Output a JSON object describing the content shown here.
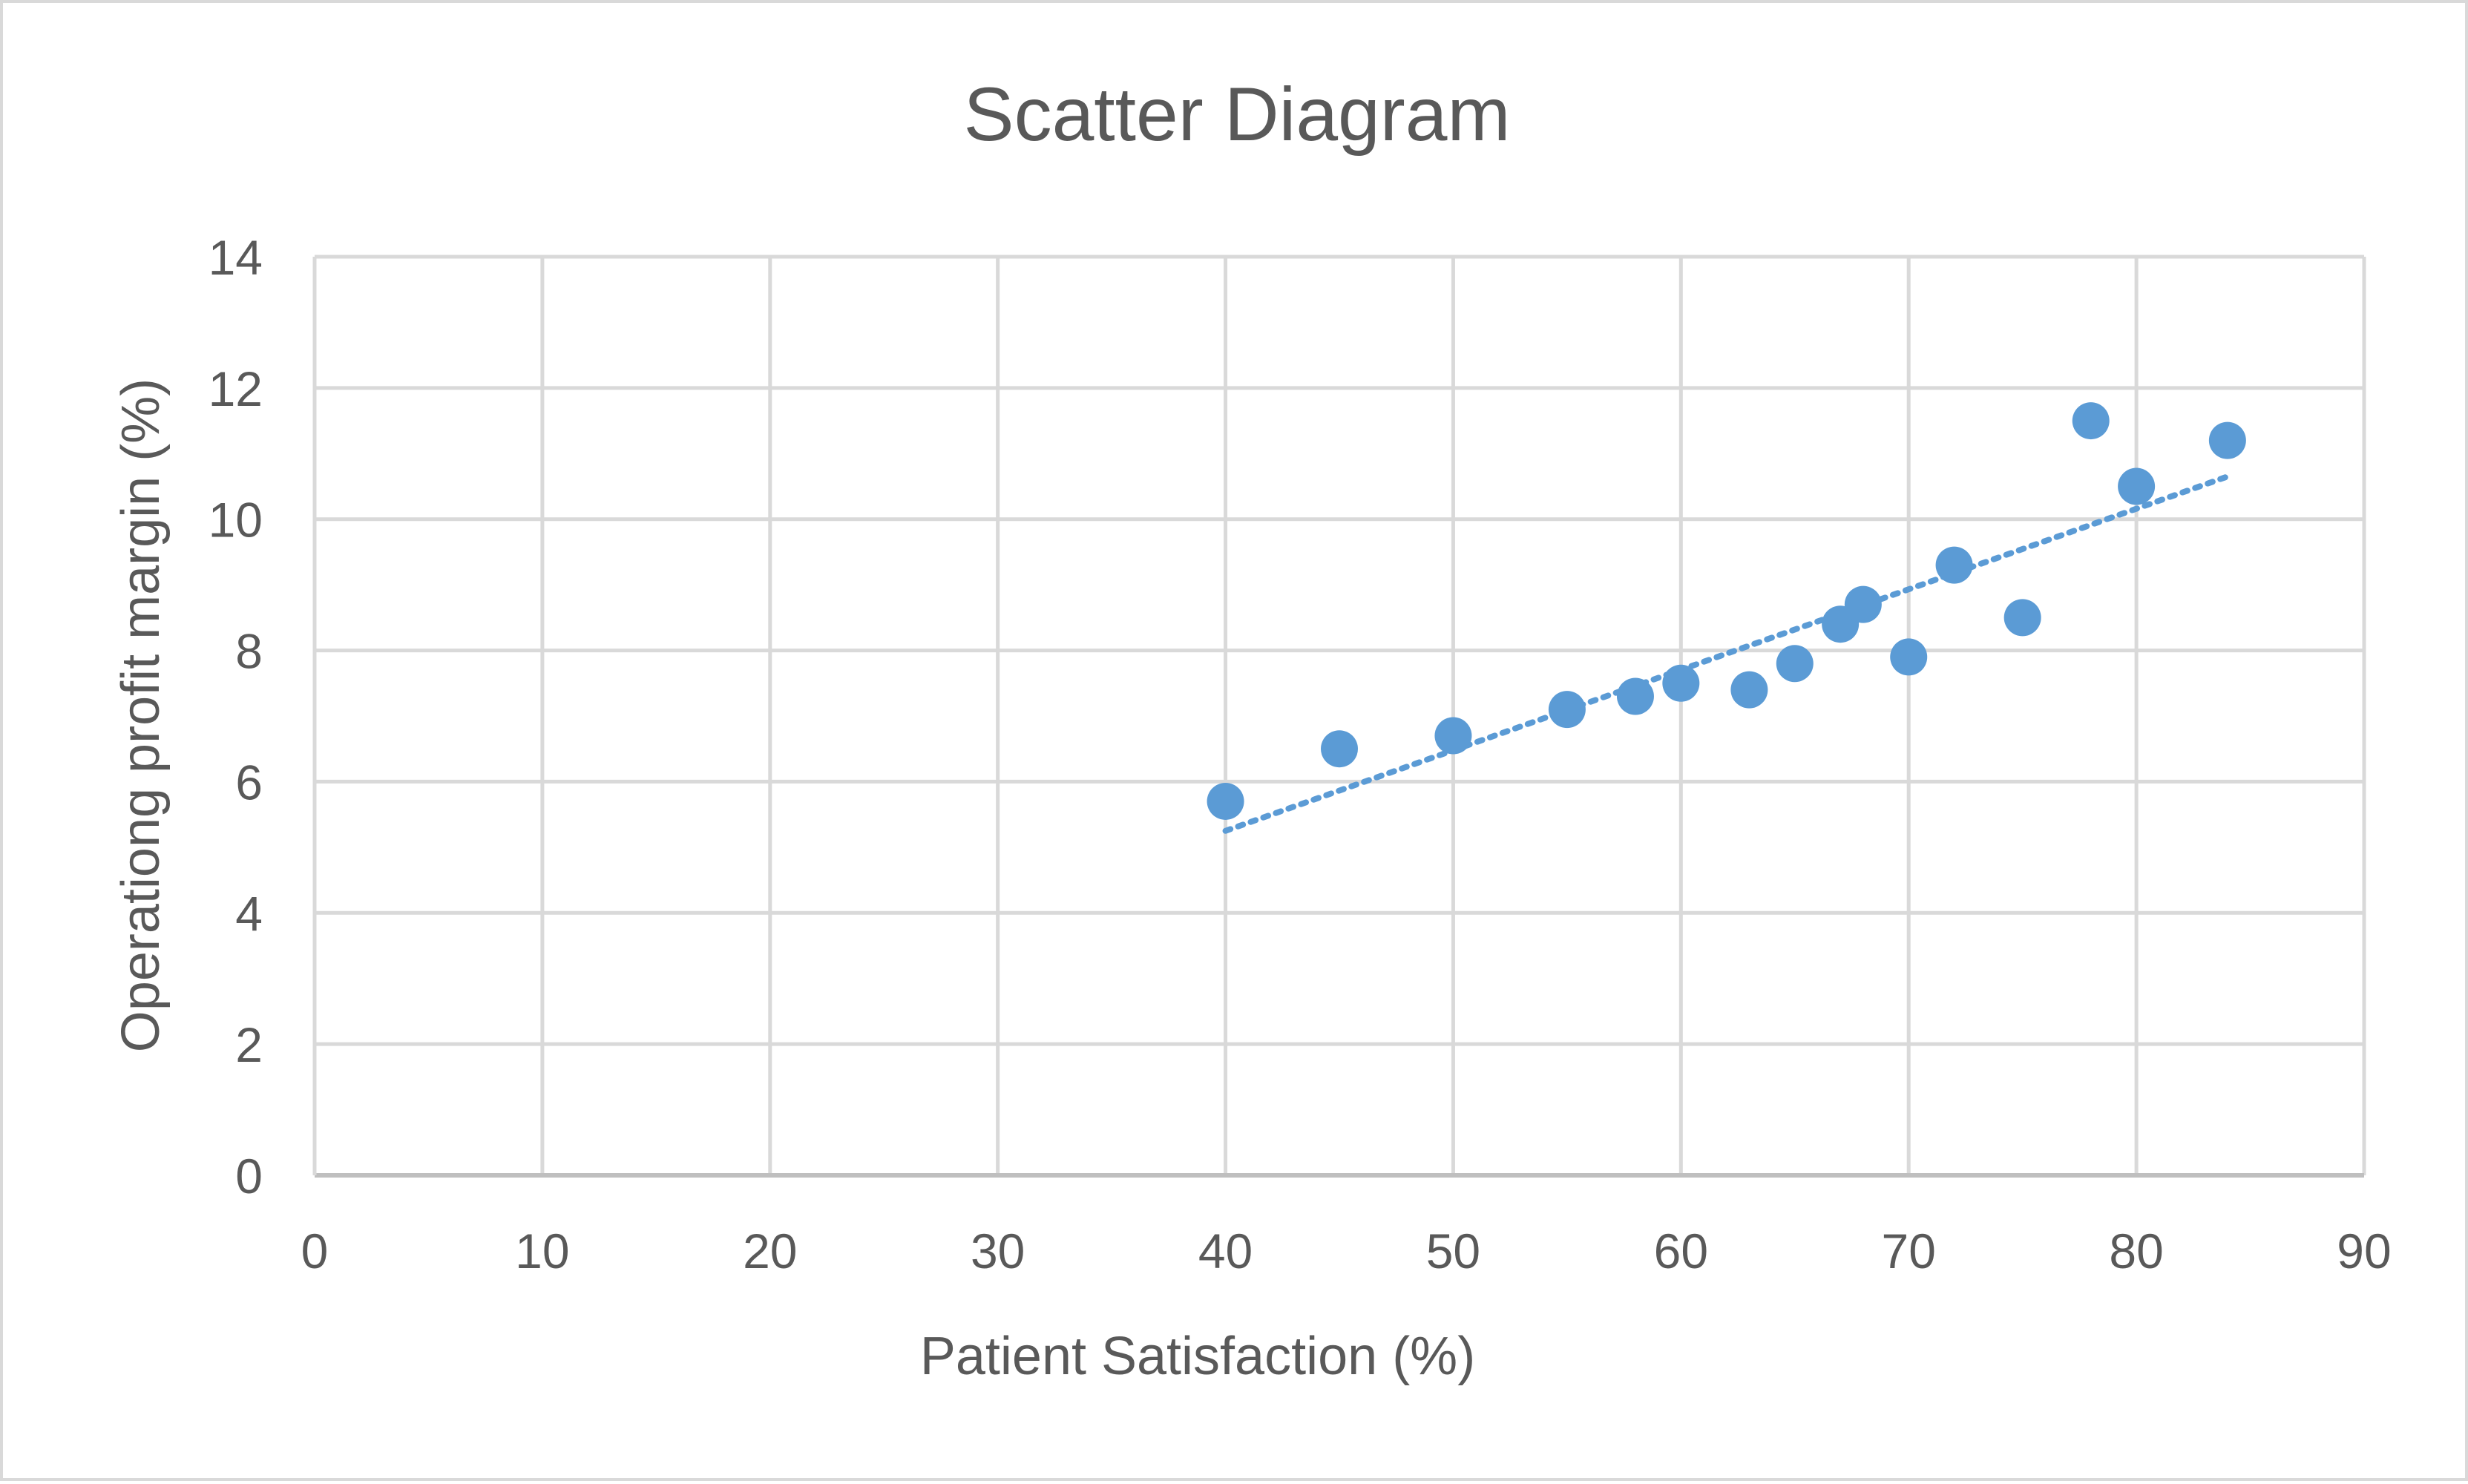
{
  "chart_data": {
    "type": "scatter",
    "title": "Scatter Diagram",
    "xlabel": "Patient Satisfaction (%)",
    "ylabel": "Operationg profit  margin (%)",
    "xlim": [
      0,
      90
    ],
    "ylim": [
      0,
      14
    ],
    "x_ticks": [
      "0",
      "10",
      "20",
      "30",
      "40",
      "50",
      "60",
      "70",
      "80",
      "90"
    ],
    "y_ticks": [
      "0",
      "2",
      "4",
      "6",
      "8",
      "10",
      "12",
      "14"
    ],
    "grid": true,
    "legend": "none",
    "series": [
      {
        "points": [
          {
            "x": 40,
            "y": 5.7
          },
          {
            "x": 45,
            "y": 6.5
          },
          {
            "x": 50,
            "y": 6.7
          },
          {
            "x": 55,
            "y": 7.1
          },
          {
            "x": 58,
            "y": 7.3
          },
          {
            "x": 60,
            "y": 7.5
          },
          {
            "x": 63,
            "y": 7.4
          },
          {
            "x": 65,
            "y": 7.8
          },
          {
            "x": 67,
            "y": 8.4
          },
          {
            "x": 68,
            "y": 8.7
          },
          {
            "x": 70,
            "y": 7.9
          },
          {
            "x": 72,
            "y": 9.3
          },
          {
            "x": 75,
            "y": 8.5
          },
          {
            "x": 78,
            "y": 11.5
          },
          {
            "x": 80,
            "y": 10.5
          },
          {
            "x": 84,
            "y": 11.2
          }
        ]
      }
    ],
    "trendline": {
      "type": "linear",
      "style": "dotted",
      "start": {
        "x": 40,
        "y": 5.25
      },
      "end": {
        "x": 84,
        "y": 10.65
      }
    },
    "colors": {
      "marker": "#5b9bd5",
      "trendline": "#5b9bd5",
      "grid": "#d9d9d9",
      "text": "#595959",
      "border": "#d9d9d9"
    }
  }
}
